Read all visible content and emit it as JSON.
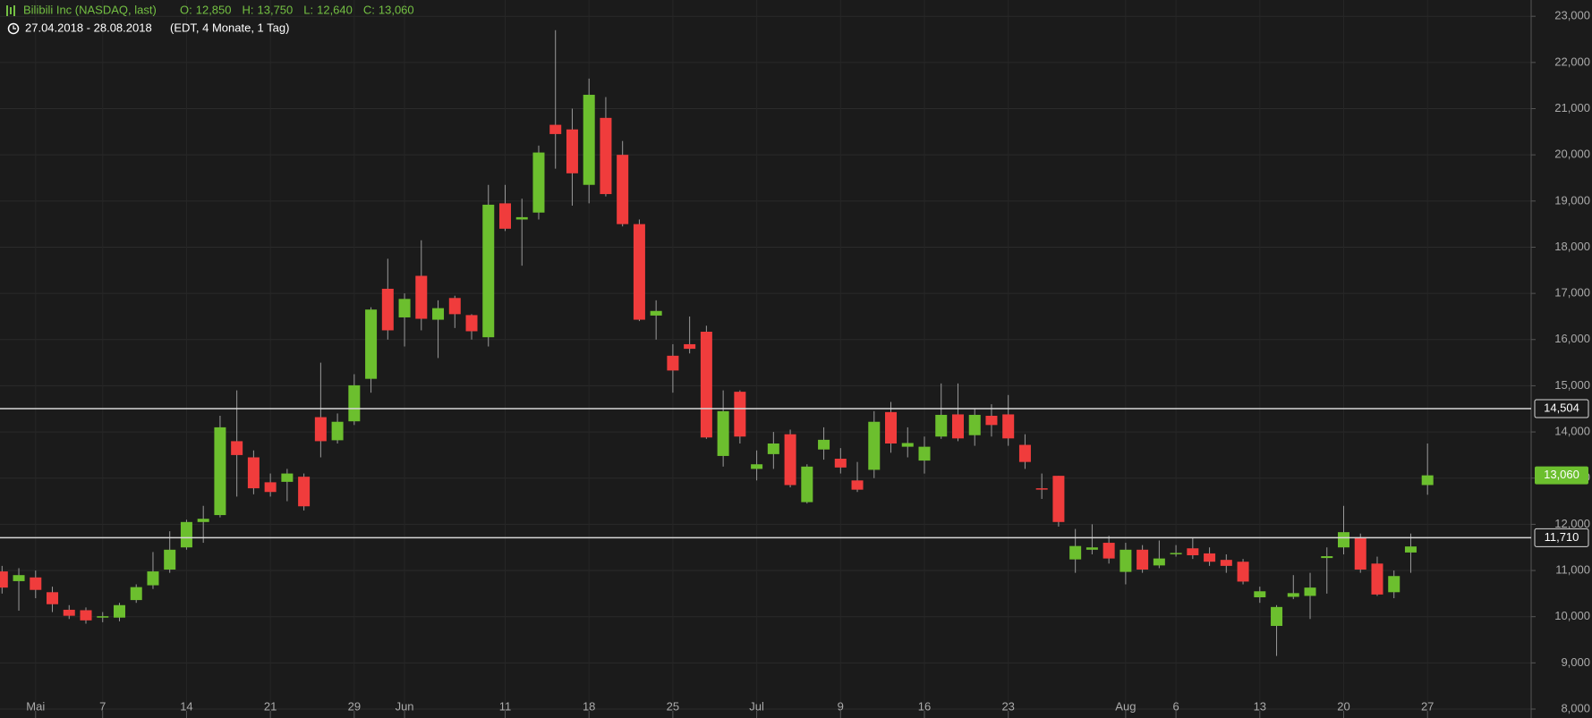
{
  "header": {
    "title": "Bilibili Inc (NASDAQ, last)",
    "ohlc": [
      {
        "key": "O:",
        "value": "12,850"
      },
      {
        "key": "H:",
        "value": "13,750"
      },
      {
        "key": "L:",
        "value": "12,640"
      },
      {
        "key": "C:",
        "value": "13,060"
      }
    ],
    "range": "27.04.2018 - 28.08.2018",
    "info": "(EDT, 4 Monate, 1 Tag)"
  },
  "chart_data": {
    "type": "candlestick",
    "categories": [
      null,
      null,
      "Mai",
      null,
      null,
      null,
      "7",
      null,
      null,
      null,
      null,
      "14",
      null,
      null,
      null,
      null,
      "21",
      null,
      null,
      null,
      null,
      "29",
      null,
      null,
      "Jun",
      null,
      null,
      null,
      null,
      null,
      "11",
      null,
      null,
      null,
      null,
      "18",
      null,
      null,
      null,
      null,
      "25",
      null,
      null,
      null,
      null,
      "Jul",
      null,
      null,
      null,
      null,
      "9",
      null,
      null,
      null,
      null,
      "16",
      null,
      null,
      null,
      null,
      "23",
      null,
      null,
      null,
      null,
      null,
      null,
      "Aug",
      null,
      null,
      "6",
      null,
      null,
      null,
      null,
      "13",
      null,
      null,
      null,
      null,
      "20",
      null,
      null,
      null,
      null,
      "27",
      null
    ],
    "series": [
      {
        "up_color": "#6cbf2e",
        "down_color": "#f03c3c",
        "open": [
          10980,
          10770,
          10850,
          10530,
          10150,
          10140,
          9980,
          9980,
          10360,
          10680,
          11020,
          11500,
          12050,
          12200,
          13800,
          13450,
          12910,
          12920,
          13030,
          14320,
          13820,
          14230,
          15150,
          17100,
          16480,
          17380,
          16430,
          16900,
          16530,
          16050,
          18950,
          18600,
          18750,
          20650,
          20550,
          19350,
          20800,
          20000,
          18500,
          16520,
          15650,
          15900,
          16170,
          13480,
          14870,
          13200,
          13520,
          13950,
          12480,
          13620,
          13420,
          12950,
          13180,
          14430,
          13680,
          13380,
          13900,
          14380,
          13930,
          14350,
          14380,
          13720,
          12780,
          13050,
          11240,
          11450,
          11600,
          10970,
          11450,
          11110,
          11360,
          11480,
          11370,
          11230,
          11190,
          10420,
          9800,
          10430,
          10450,
          11270,
          11500,
          11720,
          11150,
          10530,
          11390,
          12850
        ],
        "high": [
          11100,
          11050,
          11000,
          10650,
          10250,
          10200,
          10100,
          10300,
          10700,
          11400,
          11850,
          12100,
          12400,
          14350,
          14900,
          13600,
          13100,
          13200,
          13100,
          15500,
          14400,
          15250,
          16700,
          17750,
          17000,
          18150,
          16850,
          16950,
          16550,
          19350,
          19350,
          19050,
          20200,
          22700,
          21000,
          21650,
          21250,
          20300,
          18600,
          16850,
          15900,
          16500,
          16300,
          14900,
          14900,
          13600,
          14000,
          14050,
          13300,
          14100,
          13650,
          13350,
          14450,
          14650,
          14100,
          13900,
          15050,
          15050,
          14500,
          14600,
          14800,
          13950,
          13100,
          13050,
          11900,
          12000,
          11750,
          11600,
          11550,
          11650,
          11550,
          11700,
          11500,
          11350,
          11250,
          10650,
          10250,
          10900,
          10950,
          11500,
          12400,
          11800,
          11300,
          11000,
          11800,
          13750
        ],
        "low": [
          10500,
          10130,
          10400,
          10100,
          9950,
          9850,
          9880,
          9900,
          10300,
          10600,
          10950,
          11450,
          11600,
          12150,
          12600,
          12650,
          12600,
          12500,
          12300,
          13450,
          13750,
          14150,
          14850,
          16000,
          15850,
          16200,
          15600,
          16250,
          16000,
          15850,
          18350,
          17600,
          18600,
          19700,
          18900,
          18950,
          19100,
          18450,
          16400,
          16000,
          14850,
          15700,
          13850,
          13250,
          13750,
          12950,
          13200,
          12800,
          12450,
          13400,
          13100,
          12700,
          13000,
          13550,
          13450,
          13100,
          13850,
          13800,
          13700,
          13900,
          13700,
          13200,
          12550,
          11950,
          10950,
          11350,
          11150,
          10700,
          10950,
          11050,
          11300,
          11250,
          11100,
          10950,
          10700,
          10300,
          9150,
          10380,
          9950,
          10500,
          11350,
          10950,
          10450,
          10400,
          10950,
          12640
        ],
        "close": [
          10630,
          10900,
          10580,
          10270,
          10020,
          9920,
          10010,
          10250,
          10640,
          10980,
          11450,
          12050,
          12120,
          14100,
          13500,
          12780,
          12700,
          13100,
          12390,
          13800,
          14220,
          15010,
          16650,
          16200,
          16880,
          16450,
          16680,
          16550,
          16180,
          18920,
          18400,
          18650,
          20050,
          20450,
          19600,
          21300,
          19150,
          18500,
          16430,
          16620,
          15330,
          15800,
          13880,
          14450,
          13900,
          13300,
          13750,
          12850,
          13250,
          13830,
          13230,
          12750,
          14220,
          13750,
          13760,
          13680,
          14370,
          13860,
          14370,
          14150,
          13860,
          13350,
          12760,
          12050,
          11530,
          11500,
          11260,
          11450,
          11020,
          11260,
          11380,
          11330,
          11190,
          11100,
          10760,
          10550,
          10210,
          10510,
          10630,
          11310,
          11830,
          11020,
          10480,
          10880,
          11520,
          13060
        ]
      }
    ],
    "ylim": [
      8000,
      23000
    ],
    "yticks": [
      {
        "value": 8000,
        "label": "8,000"
      },
      {
        "value": 9000,
        "label": "9,000"
      },
      {
        "value": 10000,
        "label": "10,000"
      },
      {
        "value": 11000,
        "label": "11,000"
      },
      {
        "value": 12000,
        "label": "12,000"
      },
      {
        "value": 13000,
        "label": "13,000"
      },
      {
        "value": 14000,
        "label": "14,000"
      },
      {
        "value": 15000,
        "label": "15,000"
      },
      {
        "value": 16000,
        "label": "16,000"
      },
      {
        "value": 17000,
        "label": "17,000"
      },
      {
        "value": 18000,
        "label": "18,000"
      },
      {
        "value": 19000,
        "label": "19,000"
      },
      {
        "value": 20000,
        "label": "20,000"
      },
      {
        "value": 21000,
        "label": "21,000"
      },
      {
        "value": 22000,
        "label": "22,000"
      },
      {
        "value": 23000,
        "label": "23,000"
      }
    ],
    "hlines": [
      {
        "value": 14504,
        "label": "14,504"
      },
      {
        "value": 11710,
        "label": "11,710"
      }
    ],
    "price_marker": {
      "value": 13060,
      "label": "13,060",
      "color": "#6cbf2e"
    },
    "grid": true
  }
}
